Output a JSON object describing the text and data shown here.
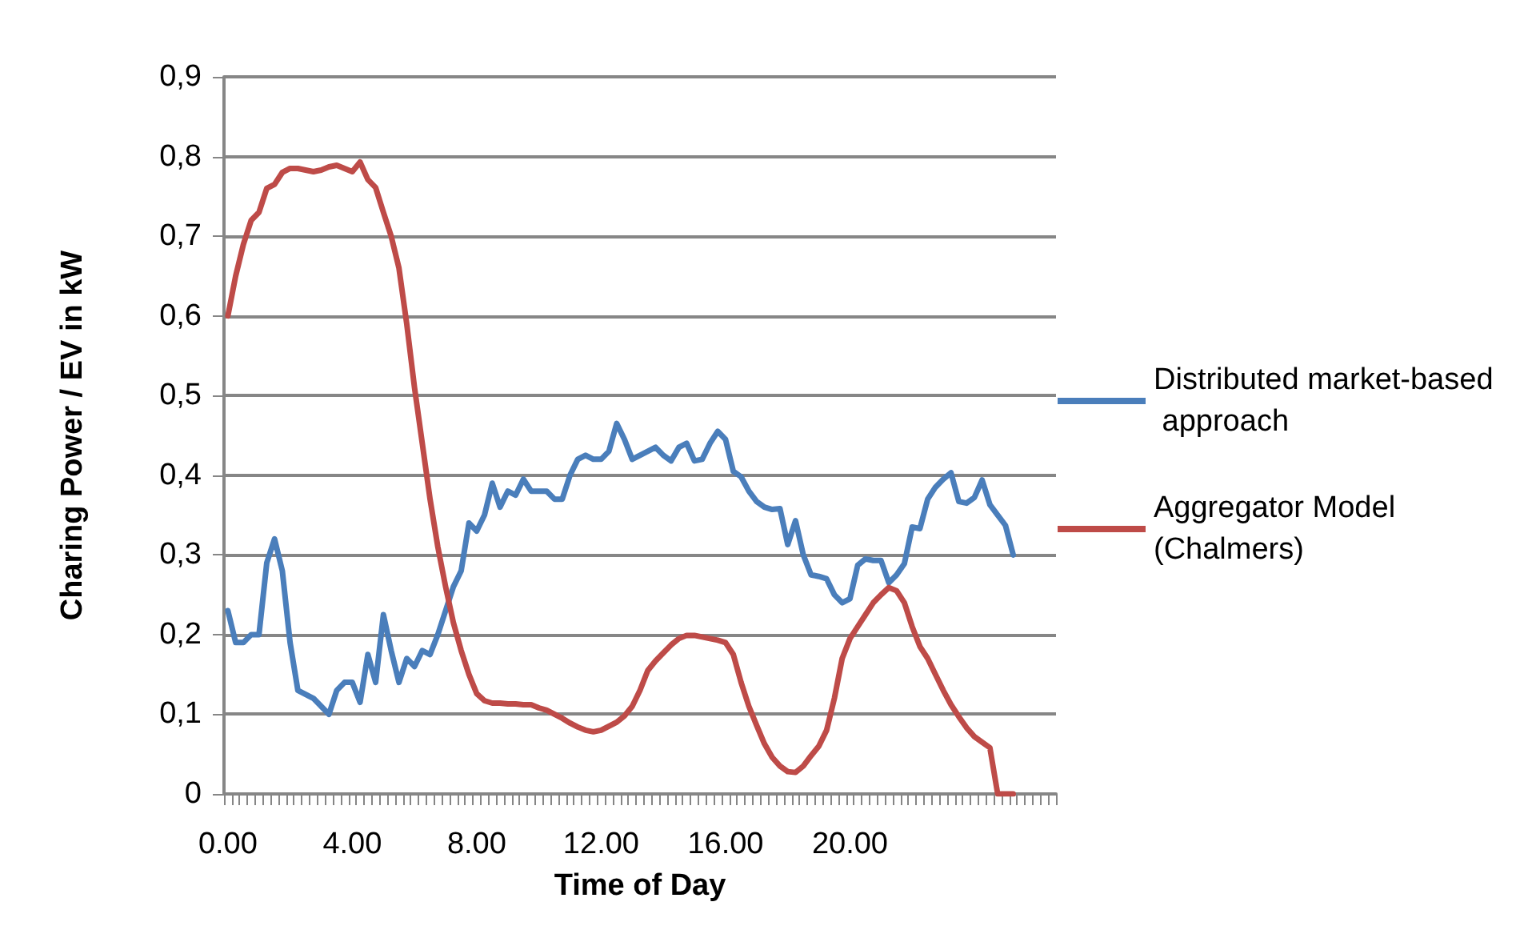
{
  "chart_data": {
    "type": "line",
    "xlabel": "Time of Day",
    "ylabel": "Charing Power / EV in kW",
    "categories": [
      "0.00",
      null,
      null,
      null,
      null,
      null,
      null,
      null,
      null,
      null,
      null,
      null,
      null,
      null,
      null,
      null,
      "4.00",
      null,
      null,
      null,
      null,
      null,
      null,
      null,
      null,
      null,
      null,
      null,
      null,
      null,
      null,
      null,
      "8.00",
      null,
      null,
      null,
      null,
      null,
      null,
      null,
      null,
      null,
      null,
      null,
      null,
      null,
      null,
      null,
      "12.00",
      null,
      null,
      null,
      null,
      null,
      null,
      null,
      null,
      null,
      null,
      null,
      null,
      null,
      null,
      null,
      "16.00",
      null,
      null,
      null,
      null,
      null,
      null,
      null,
      null,
      null,
      null,
      null,
      null,
      null,
      null,
      null,
      "20.00",
      null,
      null,
      null,
      null,
      null,
      null,
      null,
      null,
      null,
      null,
      null,
      null,
      null,
      null,
      null,
      null,
      null,
      null,
      null,
      null,
      null,
      null,
      null,
      null,
      null,
      null
    ],
    "series": [
      {
        "name": "Distributed market-based approach",
        "color": "#4a7ebb",
        "values": [
          0.23,
          0.19,
          0.19,
          0.2,
          0.2,
          0.29,
          0.32,
          0.28,
          0.19,
          0.13,
          0.125,
          0.12,
          0.11,
          0.1,
          0.13,
          0.14,
          0.14,
          0.115,
          0.175,
          0.14,
          0.225,
          0.18,
          0.14,
          0.17,
          0.16,
          0.18,
          0.175,
          0.2,
          0.23,
          0.26,
          0.28,
          0.34,
          0.33,
          0.35,
          0.39,
          0.36,
          0.38,
          0.375,
          0.395,
          0.38,
          0.38,
          0.38,
          0.37,
          0.37,
          0.4,
          0.42,
          0.425,
          0.42,
          0.42,
          0.43,
          0.465,
          0.445,
          0.42,
          0.425,
          0.43,
          0.435,
          0.425,
          0.418,
          0.435,
          0.44,
          0.418,
          0.42,
          0.44,
          0.455,
          0.445,
          0.405,
          0.398,
          0.38,
          0.367,
          0.36,
          0.357,
          0.358,
          0.313,
          0.343,
          0.3,
          0.275,
          0.273,
          0.27,
          0.25,
          0.24,
          0.245,
          0.287,
          0.295,
          0.293,
          0.293,
          0.265,
          0.275,
          0.289,
          0.335,
          0.333,
          0.37,
          0.385,
          0.395,
          0.403,
          0.367,
          0.365,
          0.372,
          0.394,
          0.363,
          0.35,
          0.337,
          0.3,
          null,
          null,
          null,
          null,
          null
        ]
      },
      {
        "name": "Aggregator Model (Chalmers)",
        "color": "#be4b48",
        "values": [
          0.6,
          0.65,
          0.69,
          0.72,
          0.73,
          0.76,
          0.765,
          0.78,
          0.785,
          0.785,
          0.783,
          0.781,
          0.783,
          0.787,
          0.789,
          0.785,
          0.781,
          0.793,
          0.771,
          0.761,
          0.73,
          0.7,
          0.66,
          0.59,
          0.51,
          0.44,
          0.37,
          0.31,
          0.26,
          0.215,
          0.18,
          0.15,
          0.126,
          0.117,
          0.114,
          0.114,
          0.113,
          0.113,
          0.112,
          0.112,
          0.108,
          0.105,
          0.1,
          0.095,
          0.089,
          0.084,
          0.08,
          0.078,
          0.08,
          0.085,
          0.09,
          0.098,
          0.11,
          0.13,
          0.155,
          0.167,
          0.177,
          0.187,
          0.195,
          0.199,
          0.199,
          0.197,
          0.195,
          0.193,
          0.19,
          0.175,
          0.14,
          0.11,
          0.086,
          0.063,
          0.046,
          0.035,
          0.028,
          0.027,
          0.035,
          0.048,
          0.06,
          0.08,
          0.12,
          0.17,
          0.195,
          0.21,
          0.225,
          0.24,
          0.25,
          0.259,
          0.255,
          0.24,
          0.21,
          0.185,
          0.17,
          0.15,
          0.13,
          0.112,
          0.097,
          0.083,
          0.072,
          0.065,
          0.058,
          0,
          0,
          0,
          null,
          null,
          null,
          null,
          null
        ]
      }
    ],
    "ylim": [
      0,
      0.9
    ],
    "yticks": [
      {
        "value": 0,
        "label": "0"
      },
      {
        "value": 0.1,
        "label": "0,1"
      },
      {
        "value": 0.2,
        "label": "0,2"
      },
      {
        "value": 0.3,
        "label": "0,3"
      },
      {
        "value": 0.4,
        "label": "0,4"
      },
      {
        "value": 0.5,
        "label": "0,5"
      },
      {
        "value": 0.6,
        "label": "0,6"
      },
      {
        "value": 0.7,
        "label": "0,7"
      },
      {
        "value": 0.8,
        "label": "0,8"
      },
      {
        "value": 0.9,
        "label": "0,9"
      }
    ],
    "grid": "y",
    "legend": "right",
    "marker": "none",
    "line_style": "solid"
  }
}
